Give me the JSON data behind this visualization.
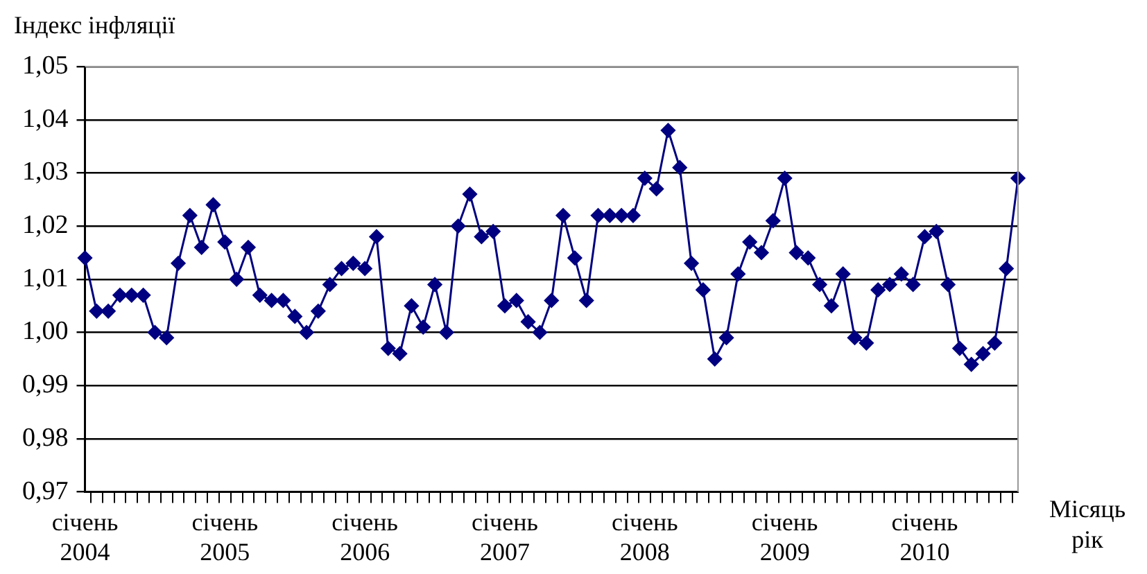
{
  "chart_data": {
    "type": "line",
    "ylabel": "Індекс інфляції",
    "xlabel": "Місяць рік",
    "categories": [
      "січень 2004",
      null,
      null,
      null,
      null,
      null,
      null,
      null,
      null,
      null,
      null,
      null,
      "січень 2005",
      null,
      null,
      null,
      null,
      null,
      null,
      null,
      null,
      null,
      null,
      null,
      "січень 2006",
      null,
      null,
      null,
      null,
      null,
      null,
      null,
      null,
      null,
      null,
      null,
      "січень 2007",
      null,
      null,
      null,
      null,
      null,
      null,
      null,
      null,
      null,
      null,
      null,
      "січень 2008",
      null,
      null,
      null,
      null,
      null,
      null,
      null,
      null,
      null,
      null,
      null,
      "січень 2009",
      null,
      null,
      null,
      null,
      null,
      null,
      null,
      null,
      null,
      null,
      null,
      "січень 2010",
      null,
      null,
      null,
      null,
      null,
      null,
      null,
      null
    ],
    "series": [
      {
        "color": "#000080",
        "values": [
          1.014,
          1.004,
          1.004,
          1.007,
          1.007,
          1.007,
          1.0,
          0.999,
          1.013,
          1.022,
          1.016,
          1.024,
          1.017,
          1.01,
          1.016,
          1.007,
          1.006,
          1.006,
          1.003,
          1.0,
          1.004,
          1.009,
          1.012,
          1.013,
          1.012,
          1.018,
          0.997,
          0.996,
          1.005,
          1.001,
          1.009,
          1.0,
          1.02,
          1.026,
          1.018,
          1.019,
          1.005,
          1.006,
          1.002,
          1.0,
          1.006,
          1.022,
          1.014,
          1.006,
          1.022,
          1.022,
          1.022,
          1.022,
          1.029,
          1.027,
          1.038,
          1.031,
          1.013,
          1.008,
          0.995,
          0.999,
          1.011,
          1.017,
          1.015,
          1.021,
          1.029,
          1.015,
          1.014,
          1.009,
          1.005,
          1.011,
          0.999,
          0.998,
          1.008,
          1.009,
          1.011,
          1.009,
          1.018,
          1.019,
          1.009,
          0.997,
          0.994,
          0.996,
          0.998,
          1.012,
          1.029
        ]
      }
    ],
    "ylim": [
      0.97,
      1.05
    ],
    "yticks": [
      {
        "value": 0.97,
        "label": "0,97"
      },
      {
        "value": 0.98,
        "label": "0,98"
      },
      {
        "value": 0.99,
        "label": "0,99"
      },
      {
        "value": 1.0,
        "label": "1,00"
      },
      {
        "value": 1.01,
        "label": "1,01"
      },
      {
        "value": 1.02,
        "label": "1,02"
      },
      {
        "value": 1.03,
        "label": "1,03"
      },
      {
        "value": 1.04,
        "label": "1,04"
      },
      {
        "value": 1.05,
        "label": "1,05"
      }
    ],
    "grid": "y",
    "legend": false,
    "marker": "diamond",
    "line_style": "solid"
  }
}
